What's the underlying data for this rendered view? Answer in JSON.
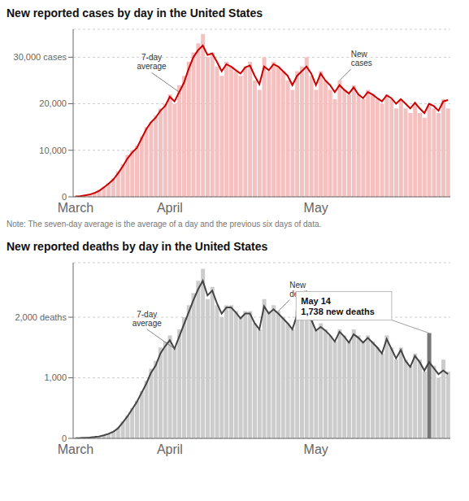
{
  "chart_data": [
    {
      "type": "bar",
      "title": "New reported cases by day in the United States",
      "categories": [
        "March",
        null,
        null,
        null,
        null,
        null,
        null,
        null,
        null,
        null,
        null,
        null,
        null,
        null,
        null,
        null,
        null,
        null,
        null,
        null,
        "April",
        null,
        null,
        null,
        null,
        null,
        null,
        null,
        null,
        null,
        null,
        null,
        null,
        null,
        null,
        null,
        null,
        null,
        null,
        null,
        null,
        null,
        null,
        null,
        null,
        null,
        null,
        null,
        null,
        null,
        null,
        "May",
        null,
        null,
        null,
        null,
        null,
        null,
        null,
        null,
        null,
        null,
        null,
        null,
        null,
        null,
        null,
        null,
        null,
        null,
        null,
        null,
        null,
        null,
        null,
        null,
        null,
        null,
        null,
        null
      ],
      "series": [
        {
          "name": "New\ncases",
          "type": "bar",
          "color": "#f5c0c0",
          "values": [
            200,
            300,
            500,
            700,
            1000,
            1500,
            2200,
            3000,
            4000,
            5500,
            7000,
            9000,
            10000,
            11000,
            13000,
            15000,
            16000,
            17500,
            19000,
            20000,
            22000,
            20000,
            24000,
            26000,
            29000,
            31000,
            33000,
            35000,
            30000,
            31000,
            28000,
            26000,
            29000,
            28000,
            27000,
            26000,
            28000,
            29000,
            25000,
            23000,
            30000,
            27000,
            29000,
            28000,
            27000,
            25000,
            23000,
            27000,
            28000,
            30000,
            26000,
            23000,
            27000,
            25000,
            23000,
            21000,
            25000,
            23000,
            22000,
            24000,
            22000,
            21000,
            23000,
            22000,
            21000,
            20000,
            22000,
            21000,
            19000,
            21000,
            19000,
            18000,
            20000,
            18000,
            17000,
            20000,
            19000,
            18000,
            21000,
            19000
          ]
        },
        {
          "name": "7-day\naverage",
          "type": "line",
          "color": "#cc0000",
          "values": [
            100,
            150,
            300,
            500,
            800,
            1300,
            2000,
            2800,
            3700,
            5000,
            6500,
            8200,
            9500,
            10500,
            12500,
            14500,
            16000,
            17000,
            18500,
            19500,
            21500,
            20500,
            22500,
            24500,
            27500,
            30000,
            31500,
            32500,
            30500,
            30800,
            29000,
            27000,
            28500,
            28000,
            27200,
            26500,
            27800,
            28200,
            26000,
            24200,
            28000,
            27200,
            28500,
            28000,
            27000,
            26000,
            24000,
            26000,
            27000,
            28000,
            26500,
            24000,
            26500,
            25000,
            24000,
            22500,
            24000,
            23000,
            22200,
            23500,
            22000,
            21200,
            22500,
            22000,
            21200,
            20500,
            21800,
            21200,
            20000,
            21000,
            20000,
            19000,
            20200,
            19000,
            18000,
            20000,
            19500,
            18500,
            20500,
            20800
          ]
        }
      ],
      "ylim": [
        0,
        36000
      ],
      "yticks": [
        0,
        {
          "value": 10000,
          "label": "10,000"
        },
        {
          "value": 20000,
          "label": "20,000"
        },
        {
          "value": 30000,
          "label": "30,000 cases"
        }
      ],
      "grid": true,
      "annotations": [
        {
          "text": "7-day\naverage",
          "series": "7-day\naverage",
          "index": 22
        },
        {
          "text": "New\ncases",
          "series": "New\ncases",
          "index": 56
        },
        {
          "text": "Note: The seven-day average is the average of a day and the previous six days of data."
        }
      ]
    },
    {
      "type": "bar",
      "title": "New reported deaths by day in the United States",
      "categories": [
        "March",
        null,
        null,
        null,
        null,
        null,
        null,
        null,
        null,
        null,
        null,
        null,
        null,
        null,
        null,
        null,
        null,
        null,
        null,
        null,
        "April",
        null,
        null,
        null,
        null,
        null,
        null,
        null,
        null,
        null,
        null,
        null,
        null,
        null,
        null,
        null,
        null,
        null,
        null,
        null,
        null,
        null,
        null,
        null,
        null,
        null,
        null,
        null,
        null,
        null,
        null,
        "May",
        null,
        null,
        null,
        null,
        null,
        null,
        null,
        null,
        null,
        null,
        null,
        null,
        null,
        null,
        null,
        null,
        null,
        null,
        null,
        null,
        null,
        null,
        null,
        null,
        null,
        null,
        null,
        null
      ],
      "series": [
        {
          "name": "New\ndeaths",
          "type": "bar",
          "color": "#cccccc",
          "colors": [
            "#cccccc",
            "#cccccc",
            "#cccccc",
            "#cccccc",
            "#cccccc",
            "#cccccc",
            "#cccccc",
            "#cccccc",
            "#cccccc",
            "#cccccc",
            "#cccccc",
            "#cccccc",
            "#cccccc",
            "#cccccc",
            "#cccccc",
            "#cccccc",
            "#cccccc",
            "#cccccc",
            "#cccccc",
            "#cccccc",
            "#cccccc",
            "#cccccc",
            "#cccccc",
            "#cccccc",
            "#cccccc",
            "#cccccc",
            "#cccccc",
            "#cccccc",
            "#cccccc",
            "#cccccc",
            "#cccccc",
            "#cccccc",
            "#cccccc",
            "#cccccc",
            "#cccccc",
            "#cccccc",
            "#cccccc",
            "#cccccc",
            "#cccccc",
            "#cccccc",
            "#cccccc",
            "#cccccc",
            "#cccccc",
            "#cccccc",
            "#cccccc",
            "#cccccc",
            "#cccccc",
            "#cccccc",
            "#cccccc",
            "#cccccc",
            "#cccccc",
            "#cccccc",
            "#cccccc",
            "#cccccc",
            "#cccccc",
            "#cccccc",
            "#cccccc",
            "#cccccc",
            "#cccccc",
            "#cccccc",
            "#cccccc",
            "#cccccc",
            "#cccccc",
            "#cccccc",
            "#cccccc",
            "#cccccc",
            "#cccccc",
            "#cccccc",
            "#cccccc",
            "#cccccc",
            "#cccccc",
            "#cccccc",
            "#cccccc",
            "#cccccc",
            "#cccccc",
            "#777777",
            "#cccccc",
            "#cccccc",
            "#cccccc",
            "#cccccc"
          ],
          "values": [
            5,
            8,
            12,
            18,
            25,
            35,
            55,
            80,
            120,
            180,
            280,
            380,
            500,
            620,
            780,
            950,
            1150,
            1280,
            1500,
            1600,
            1700,
            1500,
            1800,
            2000,
            2200,
            2400,
            2600,
            2800,
            2300,
            2500,
            2200,
            2000,
            2200,
            2200,
            2100,
            2000,
            2100,
            2100,
            1900,
            1800,
            2300,
            2100,
            2200,
            2100,
            2000,
            1900,
            1800,
            2100,
            2200,
            2300,
            2000,
            1800,
            1900,
            1800,
            1700,
            1600,
            1800,
            1700,
            1600,
            1800,
            1700,
            1600,
            1700,
            1600,
            1500,
            1400,
            1700,
            1500,
            1300,
            1500,
            1300,
            1200,
            1400,
            1300,
            1100,
            1738,
            1200,
            1000,
            1300,
            1100
          ]
        },
        {
          "name": "7-day\naverage",
          "type": "line",
          "color": "#444444",
          "values": [
            4,
            6,
            10,
            15,
            22,
            32,
            50,
            75,
            110,
            165,
            260,
            360,
            480,
            600,
            750,
            900,
            1080,
            1200,
            1400,
            1520,
            1620,
            1480,
            1680,
            1880,
            2080,
            2280,
            2460,
            2600,
            2360,
            2440,
            2230,
            2060,
            2160,
            2160,
            2080,
            1980,
            2060,
            2060,
            1900,
            1800,
            2180,
            2060,
            2130,
            2060,
            1980,
            1900,
            1800,
            2040,
            2100,
            2180,
            1960,
            1780,
            1840,
            1780,
            1700,
            1600,
            1760,
            1680,
            1580,
            1720,
            1660,
            1580,
            1660,
            1580,
            1500,
            1400,
            1640,
            1480,
            1320,
            1460,
            1280,
            1180,
            1360,
            1260,
            1120,
            1260,
            1160,
            1060,
            1120,
            1060
          ]
        }
      ],
      "ylim": [
        0,
        2900
      ],
      "yticks": [
        0,
        {
          "value": 1000,
          "label": "1,000"
        },
        {
          "value": 2000,
          "label": "2,000 deaths"
        }
      ],
      "grid": true,
      "annotations": [
        {
          "text": "7-day\naverage",
          "series": "7-day\naverage",
          "index": 21
        },
        {
          "text": "New\ndeaths",
          "series": "New\ndeaths",
          "index": 43
        },
        {
          "text": "May 14\n1,738 new deaths",
          "series": "New\ndeaths",
          "index": 75
        }
      ]
    }
  ]
}
